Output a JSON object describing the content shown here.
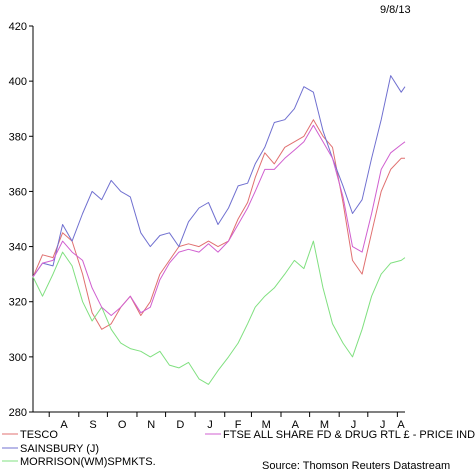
{
  "date_stamp": "9/8/13",
  "source": "Source: Thomson Reuters Datastream",
  "chart_data": {
    "type": "line",
    "title": "",
    "xlabel": "",
    "ylabel": "",
    "ylim": [
      280,
      420
    ],
    "y_ticks": [
      280,
      300,
      320,
      340,
      360,
      380,
      400,
      420
    ],
    "x_ticks": [
      "A",
      "S",
      "O",
      "N",
      "D",
      "J",
      "F",
      "M",
      "A",
      "M",
      "J",
      "J",
      "A"
    ],
    "x_range": [
      "2012-07-15",
      "2013-08-09"
    ],
    "grid": false,
    "legend_position": "bottom",
    "series": [
      {
        "name": "TESCO",
        "color": "#e07070",
        "x": [
          "2012-07-15",
          "2012-07-25",
          "2012-08-05",
          "2012-08-15",
          "2012-08-25",
          "2012-09-05",
          "2012-09-15",
          "2012-09-25",
          "2012-10-05",
          "2012-10-15",
          "2012-10-25",
          "2012-11-05",
          "2012-11-15",
          "2012-11-25",
          "2012-12-05",
          "2012-12-15",
          "2012-12-25",
          "2013-01-05",
          "2013-01-15",
          "2013-01-25",
          "2013-02-05",
          "2013-02-15",
          "2013-02-25",
          "2013-03-05",
          "2013-03-15",
          "2013-03-25",
          "2013-04-05",
          "2013-04-15",
          "2013-04-25",
          "2013-05-05",
          "2013-05-15",
          "2013-05-25",
          "2013-06-05",
          "2013-06-15",
          "2013-06-25",
          "2013-07-05",
          "2013-07-15",
          "2013-07-25",
          "2013-08-05",
          "2013-08-09"
        ],
        "values": [
          329,
          337,
          336,
          345,
          342,
          330,
          316,
          310,
          312,
          318,
          322,
          315,
          320,
          330,
          335,
          340,
          341,
          340,
          342,
          340,
          342,
          350,
          356,
          365,
          374,
          370,
          376,
          378,
          380,
          386,
          380,
          376,
          356,
          335,
          330,
          345,
          360,
          368,
          372,
          372
        ]
      },
      {
        "name": "SAINSBURY (J)",
        "color": "#7070d0",
        "x": [
          "2012-07-15",
          "2012-07-25",
          "2012-08-05",
          "2012-08-15",
          "2012-08-25",
          "2012-09-05",
          "2012-09-15",
          "2012-09-25",
          "2012-10-05",
          "2012-10-15",
          "2012-10-25",
          "2012-11-05",
          "2012-11-15",
          "2012-11-25",
          "2012-12-05",
          "2012-12-15",
          "2012-12-25",
          "2013-01-05",
          "2013-01-15",
          "2013-01-25",
          "2013-02-05",
          "2013-02-15",
          "2013-02-25",
          "2013-03-05",
          "2013-03-15",
          "2013-03-25",
          "2013-04-05",
          "2013-04-15",
          "2013-04-25",
          "2013-05-05",
          "2013-05-15",
          "2013-05-25",
          "2013-06-05",
          "2013-06-15",
          "2013-06-25",
          "2013-07-05",
          "2013-07-15",
          "2013-07-25",
          "2013-08-05",
          "2013-08-09"
        ],
        "values": [
          329,
          334,
          333,
          348,
          342,
          352,
          360,
          357,
          364,
          360,
          358,
          345,
          340,
          344,
          345,
          340,
          349,
          354,
          356,
          348,
          354,
          362,
          363,
          370,
          376,
          385,
          386,
          390,
          398,
          396,
          382,
          372,
          362,
          352,
          357,
          372,
          386,
          402,
          396,
          398
        ]
      },
      {
        "name": "MORRISON(WM)SPMKTS.",
        "color": "#80e080",
        "x": [
          "2012-07-15",
          "2012-07-25",
          "2012-08-05",
          "2012-08-15",
          "2012-08-25",
          "2012-09-05",
          "2012-09-15",
          "2012-09-25",
          "2012-10-05",
          "2012-10-15",
          "2012-10-25",
          "2012-11-05",
          "2012-11-15",
          "2012-11-25",
          "2012-12-05",
          "2012-12-15",
          "2012-12-25",
          "2013-01-05",
          "2013-01-15",
          "2013-01-25",
          "2013-02-05",
          "2013-02-15",
          "2013-02-25",
          "2013-03-05",
          "2013-03-15",
          "2013-03-25",
          "2013-04-05",
          "2013-04-15",
          "2013-04-25",
          "2013-05-05",
          "2013-05-15",
          "2013-05-25",
          "2013-06-05",
          "2013-06-15",
          "2013-06-25",
          "2013-07-05",
          "2013-07-15",
          "2013-07-25",
          "2013-08-05",
          "2013-08-09"
        ],
        "values": [
          329,
          322,
          330,
          338,
          333,
          320,
          313,
          318,
          310,
          305,
          303,
          302,
          300,
          302,
          297,
          296,
          298,
          292,
          290,
          295,
          300,
          305,
          312,
          318,
          322,
          325,
          330,
          335,
          332,
          342,
          325,
          312,
          305,
          300,
          310,
          322,
          330,
          334,
          335,
          336
        ]
      },
      {
        "name": "FTSE ALL SHARE FD & DRUG RTL £ - PRICE INDEX",
        "color": "#d060d0",
        "x": [
          "2012-07-15",
          "2012-07-25",
          "2012-08-05",
          "2012-08-15",
          "2012-08-25",
          "2012-09-05",
          "2012-09-15",
          "2012-09-25",
          "2012-10-05",
          "2012-10-15",
          "2012-10-25",
          "2012-11-05",
          "2012-11-15",
          "2012-11-25",
          "2012-12-05",
          "2012-12-15",
          "2012-12-25",
          "2013-01-05",
          "2013-01-15",
          "2013-01-25",
          "2013-02-05",
          "2013-02-15",
          "2013-02-25",
          "2013-03-05",
          "2013-03-15",
          "2013-03-25",
          "2013-04-05",
          "2013-04-15",
          "2013-04-25",
          "2013-05-05",
          "2013-05-15",
          "2013-05-25",
          "2013-06-05",
          "2013-06-15",
          "2013-06-25",
          "2013-07-05",
          "2013-07-15",
          "2013-07-25",
          "2013-08-05",
          "2013-08-09"
        ],
        "values": [
          329,
          334,
          335,
          342,
          338,
          335,
          325,
          318,
          315,
          318,
          322,
          316,
          318,
          328,
          334,
          338,
          339,
          338,
          341,
          338,
          342,
          348,
          354,
          360,
          368,
          368,
          372,
          375,
          378,
          384,
          378,
          372,
          358,
          340,
          338,
          352,
          368,
          374,
          377,
          378
        ]
      }
    ]
  }
}
